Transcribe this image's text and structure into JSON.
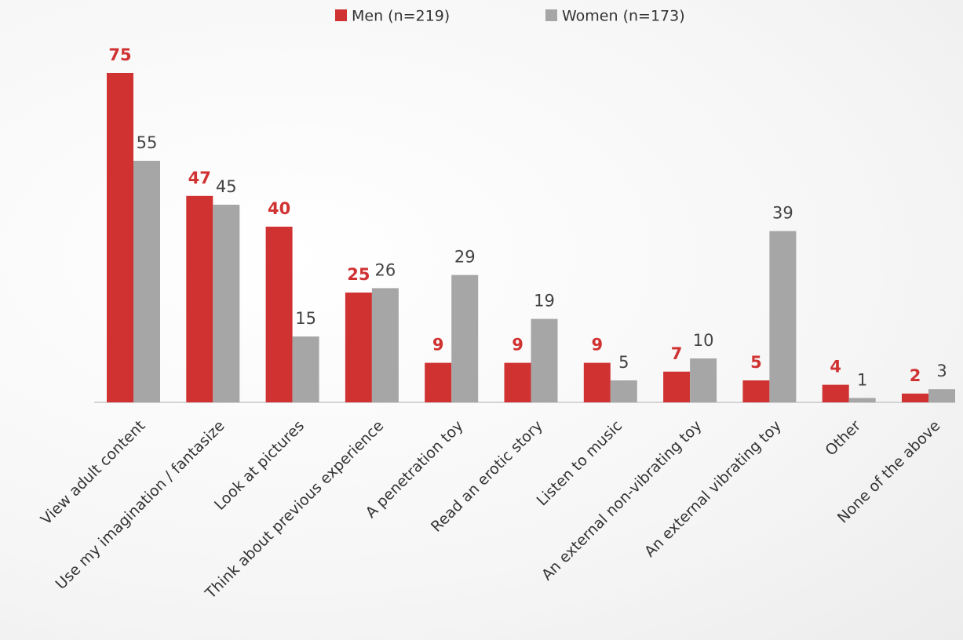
{
  "chart_data": {
    "type": "bar",
    "categories": [
      "View adult content",
      "Use my imagination / fantasize",
      "Look at pictures",
      "Think about previous experience",
      "A penetration toy",
      "Read an erotic story",
      "Listen to music",
      "An external non-vibrating toy",
      "An external vibrating toy",
      "Other",
      "None of the above"
    ],
    "series": [
      {
        "name": "Men (n=219)",
        "color": "#d03232",
        "values": [
          75,
          47,
          40,
          25,
          9,
          9,
          9,
          7,
          5,
          4,
          2
        ]
      },
      {
        "name": "Women (n=173)",
        "color": "#a6a6a6",
        "values": [
          55,
          45,
          15,
          26,
          29,
          19,
          5,
          10,
          39,
          1,
          3
        ]
      }
    ],
    "legend": "top"
  }
}
